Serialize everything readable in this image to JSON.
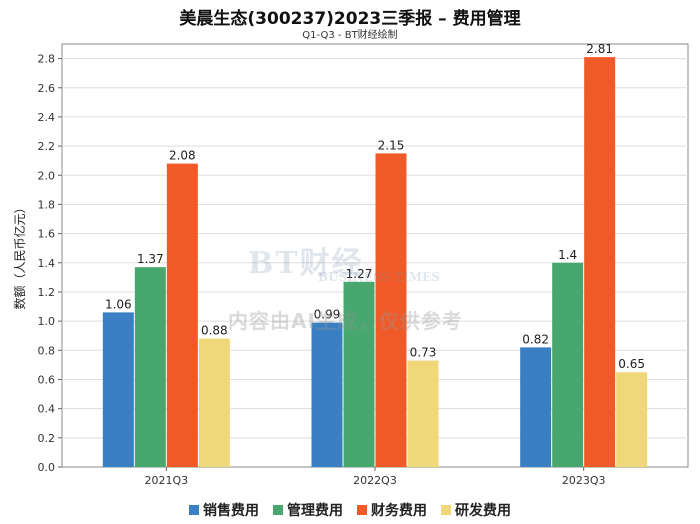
{
  "title": "美晨生态(300237)2023三季报 – 费用管理",
  "subtitle": "Q1-Q3 - BT财经绘制",
  "watermark": {
    "logo": "BT财经",
    "sub": "BUSINESS TIMES",
    "text": "内容由AI生成，仅供参考"
  },
  "chart_data": {
    "type": "bar",
    "categories": [
      "2021Q3",
      "2022Q3",
      "2023Q3"
    ],
    "series": [
      {
        "name": "销售费用",
        "color": "#3a7fc1",
        "values": [
          1.06,
          0.99,
          0.82
        ]
      },
      {
        "name": "管理费用",
        "color": "#48a76e",
        "values": [
          1.37,
          1.27,
          1.4
        ]
      },
      {
        "name": "财务费用",
        "color": "#f05a28",
        "values": [
          2.08,
          2.15,
          2.81
        ]
      },
      {
        "name": "研发费用",
        "color": "#efd77a",
        "values": [
          0.88,
          0.73,
          0.65
        ]
      }
    ],
    "ylabel": "数额（人民币亿元）",
    "ylim": [
      0,
      2.9
    ],
    "yticks": [
      "0.0",
      "0.2",
      "0.4",
      "0.6",
      "0.8",
      "1.0",
      "1.2",
      "1.4",
      "1.6",
      "1.8",
      "2.0",
      "2.2",
      "2.4",
      "2.6",
      "2.8"
    ],
    "grid": true,
    "legend_position": "bottom"
  }
}
